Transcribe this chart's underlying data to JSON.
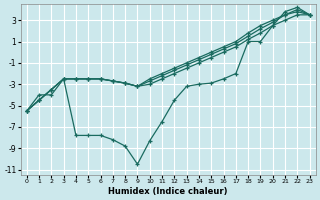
{
  "bg_color": "#cce8ec",
  "grid_color": "#ffffff",
  "line_color": "#1a6b60",
  "xlabel": "Humidex (Indice chaleur)",
  "xlim": [
    -0.5,
    23.5
  ],
  "ylim": [
    -11.5,
    4.5
  ],
  "xticks": [
    0,
    1,
    2,
    3,
    4,
    5,
    6,
    7,
    8,
    9,
    10,
    11,
    12,
    13,
    14,
    15,
    16,
    17,
    18,
    19,
    20,
    21,
    22,
    23
  ],
  "yticks": [
    -11,
    -9,
    -7,
    -5,
    -3,
    -1,
    1,
    3
  ],
  "s1x": [
    0,
    1,
    2,
    3,
    4,
    5,
    6,
    7,
    8,
    9,
    10,
    11,
    12,
    13,
    14,
    15,
    16,
    17,
    18,
    19,
    20,
    21,
    22,
    23
  ],
  "s1y": [
    -5.5,
    -4.5,
    -3.5,
    -2.5,
    -2.5,
    -2.5,
    -2.5,
    -2.7,
    -2.9,
    -3.2,
    -2.5,
    -2.0,
    -1.5,
    -1.0,
    -0.5,
    0.0,
    0.5,
    1.0,
    1.8,
    2.5,
    3.0,
    3.5,
    3.8,
    3.5
  ],
  "s2x": [
    0,
    1,
    2,
    3,
    4,
    5,
    6,
    7,
    8,
    9,
    10,
    11,
    12,
    13,
    14,
    15,
    16,
    17,
    18,
    19,
    20,
    21,
    22,
    23
  ],
  "s2y": [
    -5.5,
    -4.5,
    -3.5,
    -2.5,
    -2.5,
    -2.5,
    -2.5,
    -2.7,
    -2.9,
    -3.2,
    -2.7,
    -2.2,
    -1.7,
    -1.2,
    -0.7,
    -0.2,
    0.3,
    0.8,
    1.5,
    2.2,
    2.8,
    3.5,
    4.0,
    3.5
  ],
  "s3x": [
    0,
    1,
    2,
    3,
    4,
    5,
    6,
    7,
    8,
    9,
    10,
    11,
    12,
    13,
    14,
    15,
    16,
    17,
    18,
    19,
    20,
    21,
    22,
    23
  ],
  "s3y": [
    -5.5,
    -4.5,
    -3.5,
    -2.5,
    -2.5,
    -2.5,
    -2.5,
    -2.7,
    -2.9,
    -3.2,
    -3.0,
    -2.5,
    -2.0,
    -1.5,
    -1.0,
    -0.5,
    0.0,
    0.5,
    1.2,
    1.8,
    2.5,
    3.0,
    3.5,
    3.5
  ],
  "s4x": [
    0,
    1,
    2,
    3,
    4,
    5,
    6,
    7,
    8,
    9,
    10,
    11,
    12,
    13,
    14,
    15,
    16,
    17,
    18,
    19,
    20,
    21,
    22,
    23
  ],
  "s4y": [
    -5.5,
    -4.0,
    -4.0,
    -2.5,
    -7.8,
    -7.8,
    -7.8,
    -8.2,
    -8.8,
    -10.5,
    -8.3,
    -6.5,
    -4.5,
    -3.2,
    -3.0,
    -2.9,
    -2.5,
    -2.0,
    1.0,
    1.0,
    2.5,
    3.8,
    4.2,
    3.5
  ]
}
